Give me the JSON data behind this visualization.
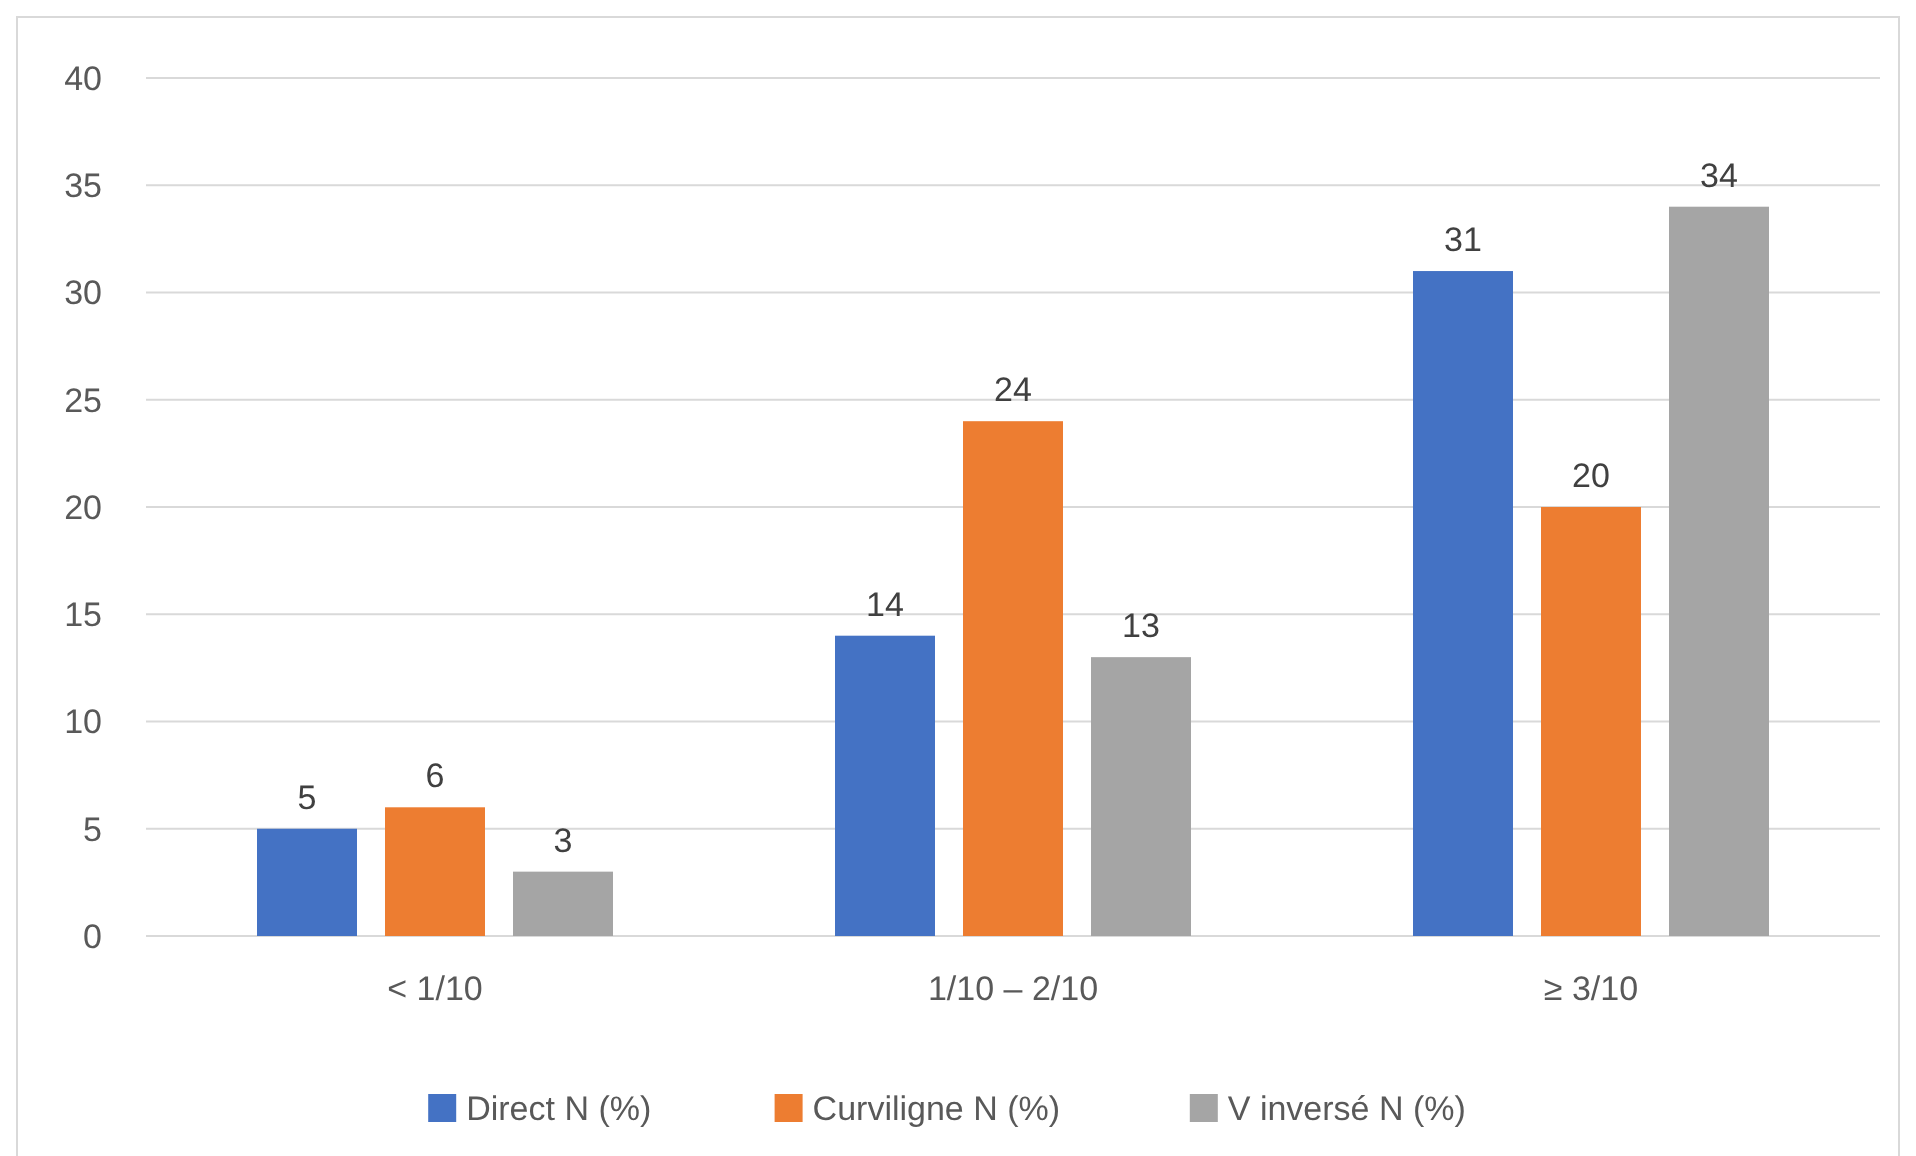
{
  "chart_data": {
    "type": "bar",
    "categories": [
      "< 1/10",
      "1/10 – 2/10",
      "≥ 3/10"
    ],
    "series": [
      {
        "name": "Direct N (%)",
        "color": "#4472c4",
        "values": [
          5,
          14,
          31
        ]
      },
      {
        "name": "Curviligne N (%)",
        "color": "#ed7d31",
        "values": [
          6,
          24,
          20
        ]
      },
      {
        "name": "V inversé N (%)",
        "color": "#a5a5a5",
        "values": [
          3,
          13,
          34
        ]
      }
    ],
    "ylim": [
      0,
      40
    ],
    "yticks": [
      0,
      5,
      10,
      15,
      20,
      25,
      30,
      35,
      40
    ],
    "grid": "y",
    "legend": "bottom",
    "data_labels": true
  }
}
